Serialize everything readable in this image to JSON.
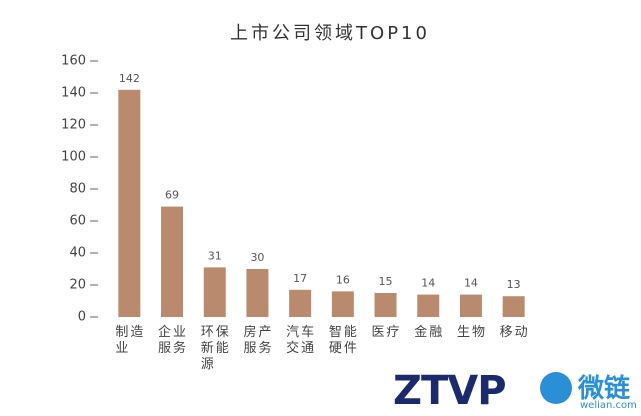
{
  "chart_data": {
    "type": "bar",
    "title": "上市公司领域TOP10",
    "categories": [
      "制造业",
      "企业服务",
      "环保新能源",
      "房产服务",
      "汽车交通",
      "智能硬件",
      "医疗",
      "金融",
      "生物",
      "移动"
    ],
    "values": [
      142,
      69,
      31,
      30,
      17,
      16,
      15,
      14,
      14,
      13
    ],
    "color": "#b98a6d",
    "ylim": [
      0,
      160
    ],
    "yticks": [
      0,
      20,
      40,
      60,
      80,
      100,
      120,
      140,
      160
    ]
  },
  "logos": {
    "left": "ZTVP",
    "right": "微链",
    "right_sub": "welian.com"
  }
}
